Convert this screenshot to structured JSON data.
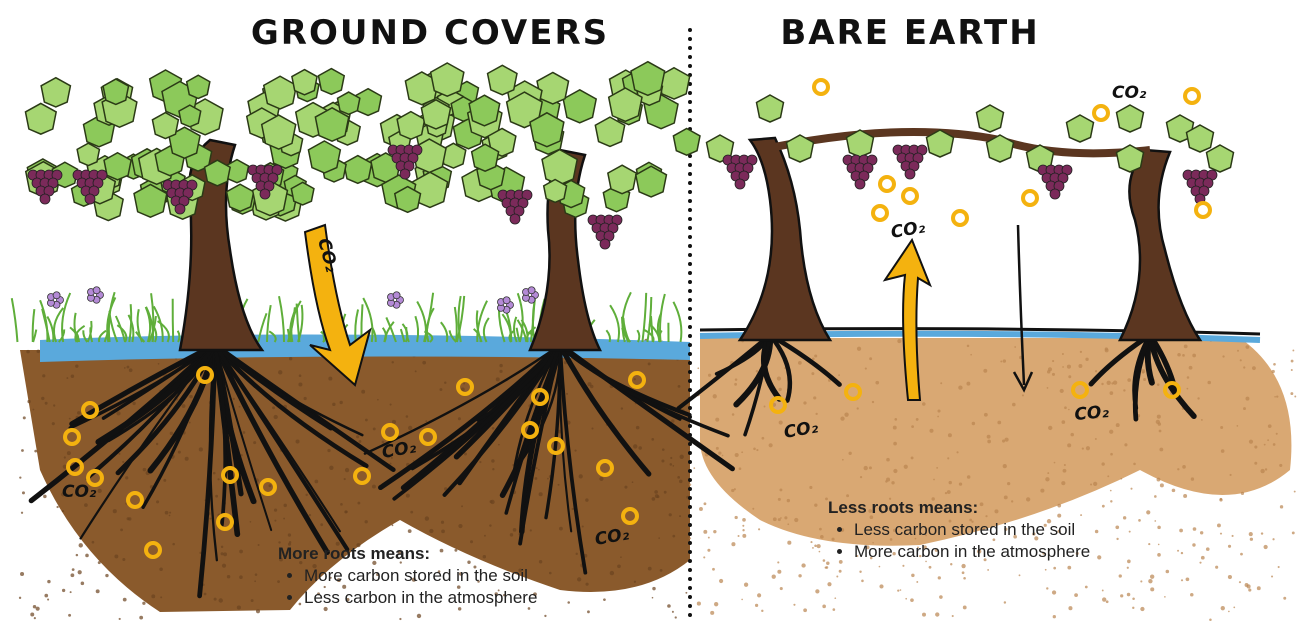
{
  "left": {
    "title": "GROUND COVERS",
    "co2_labels": [
      "CO₂",
      "CO₂",
      "CO₂",
      "CO₂"
    ],
    "caption": {
      "heading": "More roots means:",
      "bullets": [
        "More carbon stored in the soil",
        "Less carbon in the atmosphere"
      ]
    }
  },
  "right": {
    "title": "BARE EARTH",
    "co2_labels": [
      "CO₂",
      "CO₂",
      "CO₂",
      "CO₂"
    ],
    "caption": {
      "heading": "Less roots means:",
      "bullets": [
        "Less carbon stored in the soil",
        "More carbon in the atmosphere"
      ]
    }
  }
}
